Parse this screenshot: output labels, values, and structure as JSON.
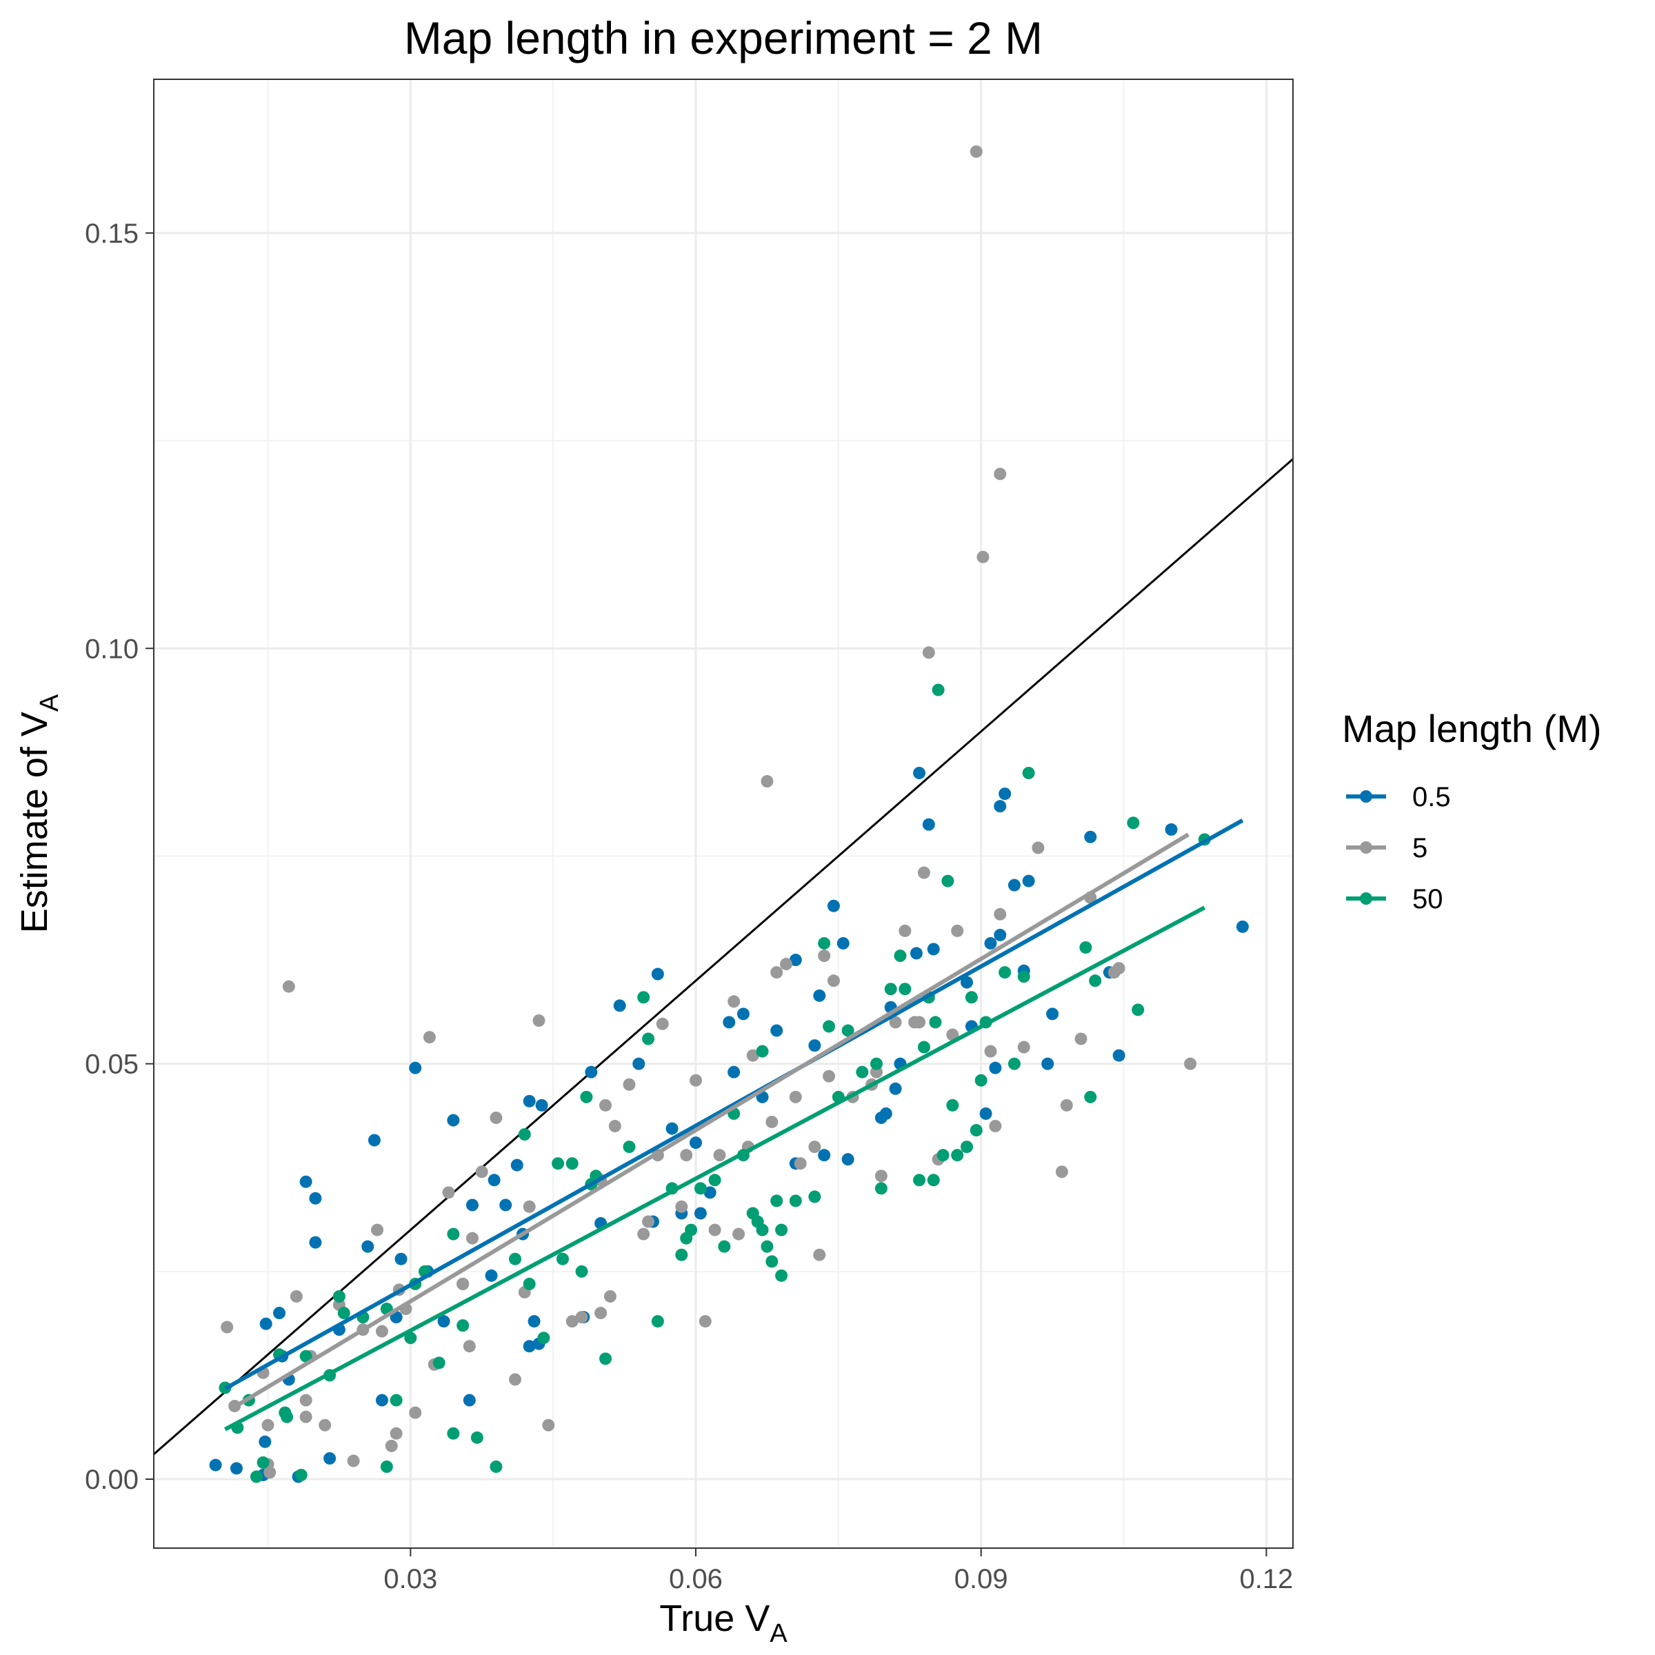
{
  "chart_data": {
    "type": "scatter",
    "title": "Map length in experiment = 2 M",
    "xlabel": {
      "main": "True V",
      "sub": "A"
    },
    "ylabel": {
      "main": "Estimate of V",
      "sub": "A"
    },
    "xlim": [
      0.003,
      0.1228
    ],
    "ylim": [
      -0.0083,
      0.1685
    ],
    "x_ticks": [
      0.03,
      0.06,
      0.09,
      0.12
    ],
    "x_tick_labels": [
      "0.03",
      "0.06",
      "0.09",
      "0.12"
    ],
    "y_ticks": [
      0.0,
      0.05,
      0.1,
      0.15
    ],
    "y_tick_labels": [
      "0.00",
      "0.05",
      "0.10",
      "0.15"
    ],
    "grid": true,
    "legend": {
      "title": "Map length (M)",
      "placement": "right"
    },
    "identity_line": {
      "color": "#000000",
      "x": [
        0.003,
        0.1228
      ],
      "y": [
        0.003,
        0.1228
      ]
    },
    "series": [
      {
        "name": "0.5",
        "color": "#0072B2",
        "fit": {
          "x": [
            0.0105,
            0.1175
          ],
          "y": [
            0.0109,
            0.0793
          ]
        },
        "points": [
          [
            0.0095,
            0.0017
          ],
          [
            0.0117,
            0.0013
          ],
          [
            0.0145,
            0.0005
          ],
          [
            0.0147,
            0.0045
          ],
          [
            0.0148,
            0.0187
          ],
          [
            0.0162,
            0.02
          ],
          [
            0.0165,
            0.0148
          ],
          [
            0.0172,
            0.012
          ],
          [
            0.0182,
            0.0003
          ],
          [
            0.019,
            0.0358
          ],
          [
            0.02,
            0.0285
          ],
          [
            0.02,
            0.0338
          ],
          [
            0.0215,
            0.0025
          ],
          [
            0.0225,
            0.018
          ],
          [
            0.0255,
            0.028
          ],
          [
            0.0262,
            0.0408
          ],
          [
            0.027,
            0.0095
          ],
          [
            0.0285,
            0.0195
          ],
          [
            0.029,
            0.0265
          ],
          [
            0.0305,
            0.0495
          ],
          [
            0.0318,
            0.025
          ],
          [
            0.0335,
            0.019
          ],
          [
            0.0345,
            0.0432
          ],
          [
            0.0355,
            0.0235
          ],
          [
            0.0362,
            0.0095
          ],
          [
            0.0365,
            0.033
          ],
          [
            0.0385,
            0.0245
          ],
          [
            0.0388,
            0.036
          ],
          [
            0.04,
            0.033
          ],
          [
            0.0412,
            0.0378
          ],
          [
            0.0418,
            0.0295
          ],
          [
            0.0425,
            0.0455
          ],
          [
            0.0425,
            0.016
          ],
          [
            0.043,
            0.019
          ],
          [
            0.0435,
            0.0163
          ],
          [
            0.0438,
            0.045
          ],
          [
            0.0482,
            0.0195
          ],
          [
            0.049,
            0.049
          ],
          [
            0.05,
            0.0308
          ],
          [
            0.052,
            0.057
          ],
          [
            0.054,
            0.05
          ],
          [
            0.0555,
            0.031
          ],
          [
            0.056,
            0.0608
          ],
          [
            0.0575,
            0.0422
          ],
          [
            0.0585,
            0.032
          ],
          [
            0.06,
            0.0405
          ],
          [
            0.0605,
            0.032
          ],
          [
            0.0615,
            0.0345
          ],
          [
            0.0635,
            0.055
          ],
          [
            0.064,
            0.049
          ],
          [
            0.065,
            0.056
          ],
          [
            0.067,
            0.046
          ],
          [
            0.0685,
            0.054
          ],
          [
            0.0705,
            0.038
          ],
          [
            0.0705,
            0.0625
          ],
          [
            0.0725,
            0.0522
          ],
          [
            0.073,
            0.0582
          ],
          [
            0.0735,
            0.039
          ],
          [
            0.0745,
            0.069
          ],
          [
            0.0755,
            0.0645
          ],
          [
            0.076,
            0.0385
          ],
          [
            0.0795,
            0.0435
          ],
          [
            0.08,
            0.044
          ],
          [
            0.0805,
            0.0568
          ],
          [
            0.081,
            0.047
          ],
          [
            0.0815,
            0.05
          ],
          [
            0.0832,
            0.0633
          ],
          [
            0.0835,
            0.085
          ],
          [
            0.0845,
            0.0788
          ],
          [
            0.085,
            0.0638
          ],
          [
            0.0885,
            0.0598
          ],
          [
            0.089,
            0.0545
          ],
          [
            0.0905,
            0.044
          ],
          [
            0.091,
            0.0645
          ],
          [
            0.0915,
            0.0495
          ],
          [
            0.092,
            0.0655
          ],
          [
            0.092,
            0.081
          ],
          [
            0.0925,
            0.0825
          ],
          [
            0.0935,
            0.0715
          ],
          [
            0.0945,
            0.0612
          ],
          [
            0.095,
            0.072
          ],
          [
            0.097,
            0.05
          ],
          [
            0.0975,
            0.056
          ],
          [
            0.1015,
            0.0773
          ],
          [
            0.1035,
            0.061
          ],
          [
            0.1045,
            0.051
          ],
          [
            0.11,
            0.0782
          ],
          [
            0.1175,
            0.0665
          ]
        ]
      },
      {
        "name": "5",
        "color": "#999999",
        "fit": {
          "x": [
            0.0115,
            0.1118
          ],
          "y": [
            0.0087,
            0.0776
          ]
        },
        "points": [
          [
            0.0107,
            0.0183
          ],
          [
            0.0115,
            0.0088
          ],
          [
            0.0145,
            0.0128
          ],
          [
            0.015,
            0.0065
          ],
          [
            0.015,
            0.0018
          ],
          [
            0.0152,
            0.0008
          ],
          [
            0.0172,
            0.0593
          ],
          [
            0.018,
            0.022
          ],
          [
            0.019,
            0.0095
          ],
          [
            0.019,
            0.0075
          ],
          [
            0.0195,
            0.0148
          ],
          [
            0.021,
            0.0065
          ],
          [
            0.0225,
            0.021
          ],
          [
            0.024,
            0.0022
          ],
          [
            0.025,
            0.018
          ],
          [
            0.0265,
            0.03
          ],
          [
            0.027,
            0.0178
          ],
          [
            0.028,
            0.004
          ],
          [
            0.0285,
            0.0055
          ],
          [
            0.0288,
            0.0228
          ],
          [
            0.0295,
            0.0205
          ],
          [
            0.0305,
            0.008
          ],
          [
            0.032,
            0.0532
          ],
          [
            0.0325,
            0.0138
          ],
          [
            0.034,
            0.0345
          ],
          [
            0.0355,
            0.0235
          ],
          [
            0.0362,
            0.016
          ],
          [
            0.0365,
            0.029
          ],
          [
            0.0375,
            0.037
          ],
          [
            0.039,
            0.0435
          ],
          [
            0.041,
            0.012
          ],
          [
            0.042,
            0.0225
          ],
          [
            0.0425,
            0.0328
          ],
          [
            0.0435,
            0.0552
          ],
          [
            0.0445,
            0.0065
          ],
          [
            0.047,
            0.019
          ],
          [
            0.048,
            0.0195
          ],
          [
            0.05,
            0.02
          ],
          [
            0.05,
            0.036
          ],
          [
            0.0505,
            0.045
          ],
          [
            0.051,
            0.022
          ],
          [
            0.0515,
            0.0425
          ],
          [
            0.053,
            0.0475
          ],
          [
            0.0545,
            0.0295
          ],
          [
            0.055,
            0.031
          ],
          [
            0.056,
            0.039
          ],
          [
            0.0565,
            0.0548
          ],
          [
            0.0585,
            0.0328
          ],
          [
            0.059,
            0.039
          ],
          [
            0.06,
            0.048
          ],
          [
            0.061,
            0.019
          ],
          [
            0.062,
            0.03
          ],
          [
            0.0625,
            0.039
          ],
          [
            0.064,
            0.0575
          ],
          [
            0.0645,
            0.0295
          ],
          [
            0.0655,
            0.04
          ],
          [
            0.066,
            0.051
          ],
          [
            0.0675,
            0.084
          ],
          [
            0.068,
            0.043
          ],
          [
            0.0685,
            0.061
          ],
          [
            0.0695,
            0.062
          ],
          [
            0.0705,
            0.046
          ],
          [
            0.071,
            0.038
          ],
          [
            0.0725,
            0.04
          ],
          [
            0.073,
            0.027
          ],
          [
            0.0735,
            0.063
          ],
          [
            0.074,
            0.0485
          ],
          [
            0.0745,
            0.06
          ],
          [
            0.0765,
            0.046
          ],
          [
            0.0785,
            0.0475
          ],
          [
            0.079,
            0.049
          ],
          [
            0.0795,
            0.0365
          ],
          [
            0.081,
            0.055
          ],
          [
            0.082,
            0.066
          ],
          [
            0.083,
            0.055
          ],
          [
            0.0835,
            0.055
          ],
          [
            0.084,
            0.073
          ],
          [
            0.0845,
            0.0995
          ],
          [
            0.0855,
            0.0385
          ],
          [
            0.087,
            0.0535
          ],
          [
            0.0875,
            0.066
          ],
          [
            0.0895,
            0.1598
          ],
          [
            0.0902,
            0.111
          ],
          [
            0.091,
            0.0515
          ],
          [
            0.0915,
            0.0425
          ],
          [
            0.092,
            0.121
          ],
          [
            0.092,
            0.068
          ],
          [
            0.0945,
            0.052
          ],
          [
            0.096,
            0.076
          ],
          [
            0.0985,
            0.037
          ],
          [
            0.099,
            0.045
          ],
          [
            0.1005,
            0.053
          ],
          [
            0.1015,
            0.07
          ],
          [
            0.104,
            0.061
          ],
          [
            0.1045,
            0.0615
          ],
          [
            0.112,
            0.05
          ]
        ]
      },
      {
        "name": "50",
        "color": "#009E73",
        "fit": {
          "x": [
            0.0105,
            0.1135
          ],
          "y": [
            0.006,
            0.0688
          ]
        },
        "points": [
          [
            0.0105,
            0.011
          ],
          [
            0.0118,
            0.0062
          ],
          [
            0.013,
            0.0095
          ],
          [
            0.0138,
            0.0003
          ],
          [
            0.0145,
            0.002
          ],
          [
            0.0162,
            0.015
          ],
          [
            0.0168,
            0.008
          ],
          [
            0.017,
            0.0075
          ],
          [
            0.0185,
            0.0005
          ],
          [
            0.019,
            0.0148
          ],
          [
            0.0215,
            0.0125
          ],
          [
            0.0225,
            0.022
          ],
          [
            0.023,
            0.02
          ],
          [
            0.025,
            0.0195
          ],
          [
            0.0275,
            0.0015
          ],
          [
            0.0275,
            0.0205
          ],
          [
            0.0285,
            0.0095
          ],
          [
            0.03,
            0.017
          ],
          [
            0.0305,
            0.0235
          ],
          [
            0.0315,
            0.025
          ],
          [
            0.033,
            0.014
          ],
          [
            0.0345,
            0.0055
          ],
          [
            0.0345,
            0.0295
          ],
          [
            0.0355,
            0.0185
          ],
          [
            0.037,
            0.005
          ],
          [
            0.039,
            0.0015
          ],
          [
            0.041,
            0.0265
          ],
          [
            0.042,
            0.0415
          ],
          [
            0.0425,
            0.0235
          ],
          [
            0.044,
            0.017
          ],
          [
            0.0455,
            0.038
          ],
          [
            0.046,
            0.0265
          ],
          [
            0.047,
            0.038
          ],
          [
            0.048,
            0.025
          ],
          [
            0.0485,
            0.046
          ],
          [
            0.049,
            0.0355
          ],
          [
            0.0495,
            0.0365
          ],
          [
            0.0505,
            0.0145
          ],
          [
            0.053,
            0.04
          ],
          [
            0.0545,
            0.058
          ],
          [
            0.055,
            0.053
          ],
          [
            0.056,
            0.019
          ],
          [
            0.0575,
            0.035
          ],
          [
            0.0585,
            0.027
          ],
          [
            0.059,
            0.029
          ],
          [
            0.0595,
            0.03
          ],
          [
            0.0605,
            0.035
          ],
          [
            0.062,
            0.036
          ],
          [
            0.063,
            0.028
          ],
          [
            0.064,
            0.044
          ],
          [
            0.065,
            0.039
          ],
          [
            0.066,
            0.032
          ],
          [
            0.0665,
            0.031
          ],
          [
            0.067,
            0.0515
          ],
          [
            0.067,
            0.03
          ],
          [
            0.0675,
            0.028
          ],
          [
            0.068,
            0.0262
          ],
          [
            0.0685,
            0.0335
          ],
          [
            0.069,
            0.0245
          ],
          [
            0.069,
            0.03
          ],
          [
            0.0705,
            0.0335
          ],
          [
            0.0725,
            0.034
          ],
          [
            0.0735,
            0.0645
          ],
          [
            0.074,
            0.0545
          ],
          [
            0.075,
            0.046
          ],
          [
            0.076,
            0.054
          ],
          [
            0.0775,
            0.049
          ],
          [
            0.079,
            0.05
          ],
          [
            0.0795,
            0.035
          ],
          [
            0.0805,
            0.059
          ],
          [
            0.0815,
            0.063
          ],
          [
            0.082,
            0.059
          ],
          [
            0.0835,
            0.036
          ],
          [
            0.084,
            0.052
          ],
          [
            0.0845,
            0.058
          ],
          [
            0.085,
            0.036
          ],
          [
            0.0852,
            0.055
          ],
          [
            0.0855,
            0.095
          ],
          [
            0.086,
            0.039
          ],
          [
            0.0865,
            0.072
          ],
          [
            0.087,
            0.045
          ],
          [
            0.0875,
            0.039
          ],
          [
            0.0885,
            0.04
          ],
          [
            0.089,
            0.058
          ],
          [
            0.0895,
            0.042
          ],
          [
            0.09,
            0.048
          ],
          [
            0.0905,
            0.055
          ],
          [
            0.0925,
            0.061
          ],
          [
            0.0935,
            0.05
          ],
          [
            0.0945,
            0.0605
          ],
          [
            0.095,
            0.085
          ],
          [
            0.101,
            0.064
          ],
          [
            0.1015,
            0.046
          ],
          [
            0.102,
            0.06
          ],
          [
            0.106,
            0.079
          ],
          [
            0.1065,
            0.0565
          ],
          [
            0.1135,
            0.077
          ]
        ]
      }
    ]
  }
}
